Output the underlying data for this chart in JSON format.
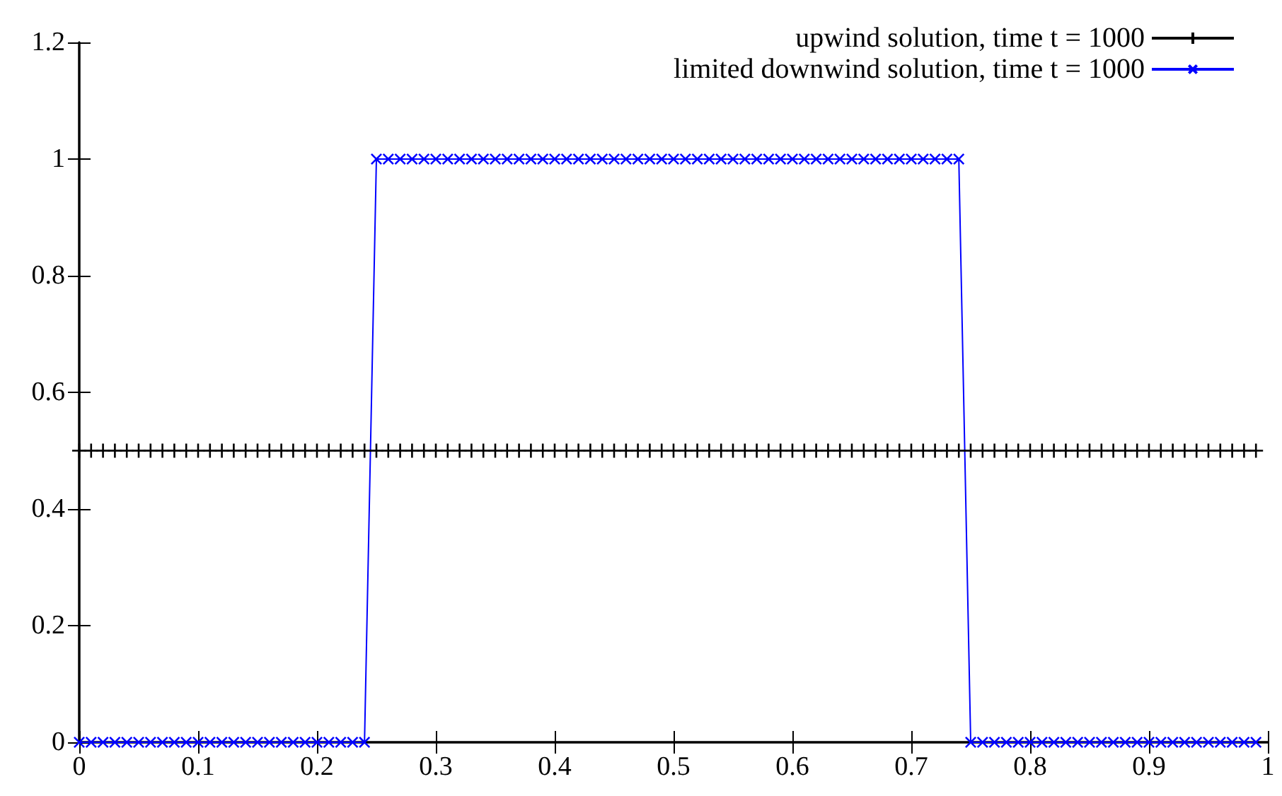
{
  "chart_data": {
    "type": "line",
    "x": [
      0,
      0.01,
      0.02,
      0.03,
      0.04,
      0.05,
      0.06,
      0.07,
      0.08,
      0.09,
      0.1,
      0.11,
      0.12,
      0.13,
      0.14,
      0.15,
      0.16,
      0.17,
      0.18,
      0.19,
      0.2,
      0.21,
      0.22,
      0.23,
      0.24,
      0.25,
      0.26,
      0.27,
      0.28,
      0.29,
      0.3,
      0.31,
      0.32,
      0.33,
      0.34,
      0.35,
      0.36,
      0.37,
      0.38,
      0.39,
      0.4,
      0.41,
      0.42,
      0.43,
      0.44,
      0.45,
      0.46,
      0.47,
      0.48,
      0.49,
      0.5,
      0.51,
      0.52,
      0.53,
      0.54,
      0.55,
      0.56,
      0.57,
      0.58,
      0.59,
      0.6,
      0.61,
      0.62,
      0.63,
      0.64,
      0.65,
      0.66,
      0.67,
      0.68,
      0.69,
      0.7,
      0.71,
      0.72,
      0.73,
      0.74,
      0.75,
      0.76,
      0.77,
      0.78,
      0.79,
      0.8,
      0.81,
      0.82,
      0.83,
      0.84,
      0.85,
      0.86,
      0.87,
      0.88,
      0.89,
      0.9,
      0.91,
      0.92,
      0.93,
      0.94,
      0.95,
      0.96,
      0.97,
      0.98,
      0.99
    ],
    "series": [
      {
        "name": "upwind solution, time t = 1000",
        "color": "#000000",
        "marker": "cross",
        "values": [
          0.5,
          0.5,
          0.5,
          0.5,
          0.5,
          0.5,
          0.5,
          0.5,
          0.5,
          0.5,
          0.5,
          0.5,
          0.5,
          0.5,
          0.5,
          0.5,
          0.5,
          0.5,
          0.5,
          0.5,
          0.5,
          0.5,
          0.5,
          0.5,
          0.5,
          0.5,
          0.5,
          0.5,
          0.5,
          0.5,
          0.5,
          0.5,
          0.5,
          0.5,
          0.5,
          0.5,
          0.5,
          0.5,
          0.5,
          0.5,
          0.5,
          0.5,
          0.5,
          0.5,
          0.5,
          0.5,
          0.5,
          0.5,
          0.5,
          0.5,
          0.5,
          0.5,
          0.5,
          0.5,
          0.5,
          0.5,
          0.5,
          0.5,
          0.5,
          0.5,
          0.5,
          0.5,
          0.5,
          0.5,
          0.5,
          0.5,
          0.5,
          0.5,
          0.5,
          0.5,
          0.5,
          0.5,
          0.5,
          0.5,
          0.5,
          0.5,
          0.5,
          0.5,
          0.5,
          0.5,
          0.5,
          0.5,
          0.5,
          0.5,
          0.5,
          0.5,
          0.5,
          0.5,
          0.5,
          0.5,
          0.5,
          0.5,
          0.5,
          0.5,
          0.5,
          0.5,
          0.5,
          0.5,
          0.5,
          0.5
        ]
      },
      {
        "name": "limited downwind solution, time t = 1000",
        "color": "#0000ff",
        "marker": "cross",
        "values": [
          0,
          0,
          0,
          0,
          0,
          0,
          0,
          0,
          0,
          0,
          0,
          0,
          0,
          0,
          0,
          0,
          0,
          0,
          0,
          0,
          0,
          0,
          0,
          0,
          0,
          1,
          1,
          1,
          1,
          1,
          1,
          1,
          1,
          1,
          1,
          1,
          1,
          1,
          1,
          1,
          1,
          1,
          1,
          1,
          1,
          1,
          1,
          1,
          1,
          1,
          1,
          1,
          1,
          1,
          1,
          1,
          1,
          1,
          1,
          1,
          1,
          1,
          1,
          1,
          1,
          1,
          1,
          1,
          1,
          1,
          1,
          1,
          1,
          1,
          1,
          0,
          0,
          0,
          0,
          0,
          0,
          0,
          0,
          0,
          0,
          0,
          0,
          0,
          0,
          0,
          0,
          0,
          0,
          0,
          0,
          0,
          0,
          0,
          0,
          0
        ]
      }
    ],
    "xlim": [
      0,
      1
    ],
    "xticks": [
      0,
      0.1,
      0.2,
      0.3,
      0.4,
      0.5,
      0.6,
      0.7,
      0.8,
      0.9,
      1
    ],
    "ylim": [
      0,
      1.2
    ],
    "yticks": [
      0,
      0.2,
      0.4,
      0.6,
      0.8,
      1,
      1.2
    ],
    "legend": "top right",
    "line_style": "solid"
  }
}
